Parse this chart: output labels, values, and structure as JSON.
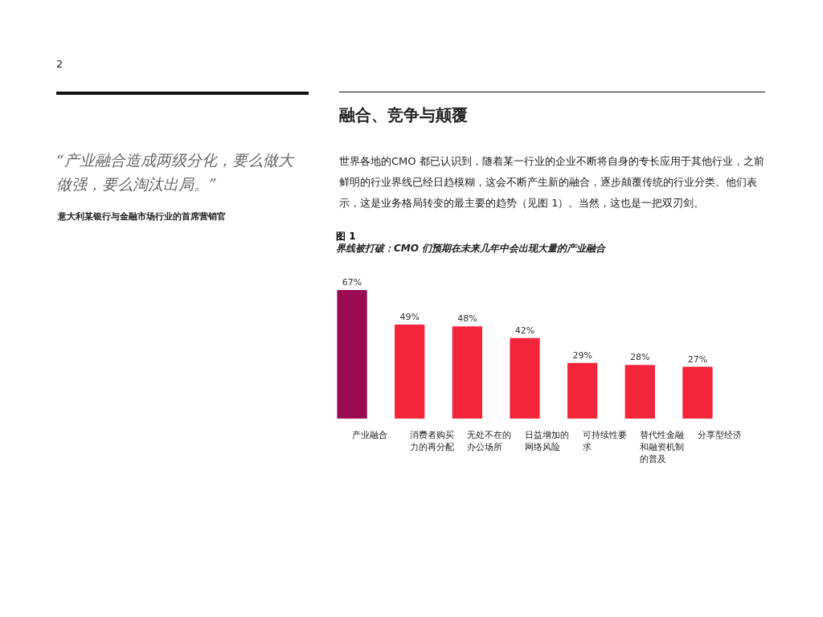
{
  "chart_data": {
    "type": "bar",
    "title": "图 1",
    "subtitle": "界线被打破：CMO 们预期在未来几年中会出现大量的产业融合",
    "categories": [
      "产业融合",
      "消费者购买力的再分配",
      "无处不在的办公场所",
      "日益增加的网络风险",
      "可持续性要求",
      "替代性金融和融资机制的普及",
      "分享型经济"
    ],
    "values": [
      67,
      49,
      48,
      42,
      29,
      28,
      27
    ],
    "value_labels": [
      "67%",
      "49%",
      "48%",
      "42%",
      "29%",
      "28%",
      "27%"
    ],
    "colors": [
      "#9a0b53",
      "#f4243a",
      "#f4243a",
      "#f4243a",
      "#f4243a",
      "#f4243a",
      "#f4243a"
    ],
    "annotations": [
      "2",
      "“产业融合造成两级分化，要么做大做强，要么淘汰出局。”",
      "意大利某银行与金融市场行业的首席营销官",
      "融合、竞争与颠覆",
      "世界各地的CMO 都已认识到，随着某一行业的企业不断将自身的专长应用于其他行业，之前鲜明的行业界线已经日趋模糊，这会不断产生新的融合，逐步颠覆传统的行业分类。他们表示，这是业务格局转变的最主要的趋势（见图 1）。当然，这也是一把双刃剑。"
    ]
  }
}
